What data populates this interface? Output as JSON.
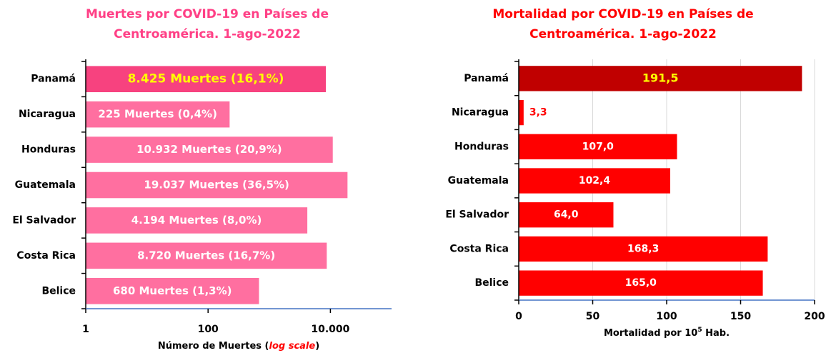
{
  "chart_data": [
    {
      "type": "bar",
      "orientation": "horizontal",
      "title": [
        "Muertes por COVID-19 en Países de",
        "Centroamérica. 1-ago-2022"
      ],
      "title_color": "#ff4086",
      "xlabel": [
        "Número de Muertes (",
        "log scale",
        ")"
      ],
      "categories": [
        "Panamá",
        "Nicaragua",
        "Honduras",
        "Guatemala",
        "El Salvador",
        "Costa Rica",
        "Belice"
      ],
      "values": [
        8425,
        225,
        10932,
        19037,
        4194,
        8720,
        680
      ],
      "value_labels": [
        "8.425 Muertes (16,1%)",
        "225 Muertes (0,4%)",
        "10.932 Muertes (20,9%)",
        "19.037 Muertes (36,5%)",
        "4.194 Muertes (8,0%)",
        "8.720 Muertes (16,7%)",
        "680 Muertes (1,3%)"
      ],
      "colors": [
        "#f7427f",
        "#ff6fa0",
        "#ff6fa0",
        "#ff6fa0",
        "#ff6fa0",
        "#ff6fa0",
        "#ff6fa0"
      ],
      "label_colors": [
        "#ffff00",
        "#ffffff",
        "#ffffff",
        "#ffffff",
        "#ffffff",
        "#ffffff",
        "#ffffff"
      ],
      "xscale": "log",
      "xlim": [
        1,
        100000
      ],
      "xticks": [
        1,
        100,
        {
          "value": 10000,
          "label": "10.000"
        }
      ],
      "grid": false
    },
    {
      "type": "bar",
      "orientation": "horizontal",
      "title": [
        "Mortalidad por COVID-19 en Países de",
        "Centroamérica. 1-ago-2022"
      ],
      "title_color": "#ff0000",
      "xlabel": [
        "Mortalidad por 10",
        "5",
        " Hab."
      ],
      "categories": [
        "Panamá",
        "Nicaragua",
        "Honduras",
        "Guatemala",
        "El Salvador",
        "Costa Rica",
        "Belice"
      ],
      "values": [
        191.5,
        3.3,
        107.0,
        102.4,
        64.0,
        168.3,
        165.0
      ],
      "value_labels": [
        "191,5",
        "3,3",
        "107,0",
        "102,4",
        "64,0",
        "168,3",
        "165,0"
      ],
      "colors": [
        "#c00000",
        "#ff0000",
        "#ff0000",
        "#ff0000",
        "#ff0000",
        "#ff0000",
        "#ff0000"
      ],
      "label_colors": [
        "#ffff00",
        "#ff0000",
        "#ffffff",
        "#ffffff",
        "#ffffff",
        "#ffffff",
        "#ffffff"
      ],
      "xscale": "linear",
      "xlim": [
        0,
        200
      ],
      "xticks": [
        0,
        50,
        100,
        150,
        200
      ],
      "grid": true
    }
  ]
}
